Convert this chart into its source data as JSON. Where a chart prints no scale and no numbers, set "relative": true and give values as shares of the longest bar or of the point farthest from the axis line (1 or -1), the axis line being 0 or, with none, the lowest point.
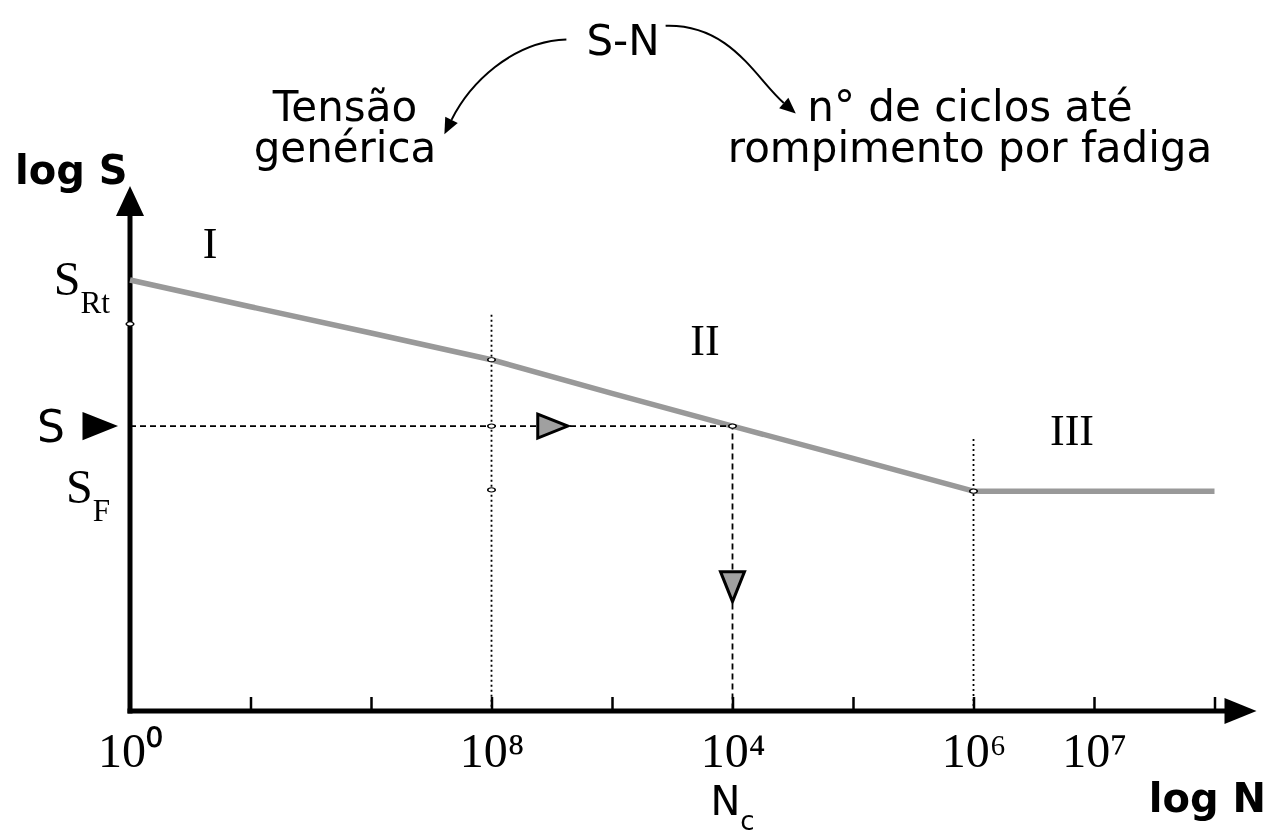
{
  "chart_data": {
    "type": "line",
    "title": "S-N",
    "xlabel": "log N",
    "ylabel": "log S",
    "relative": true,
    "categories": [
      "10⁰",
      null,
      null,
      "10⁸",
      null,
      "10⁴",
      null,
      "10⁶",
      "10⁷",
      null
    ],
    "series": [
      {
        "color": "#999999",
        "values": [
          1,
          0.938,
          0.877,
          0.815,
          0.737,
          0.661,
          0.586,
          0.51,
          0.51,
          0.51
        ]
      },
      {
        "type": "line",
        "line_style": "dashed",
        "color": "#000000",
        "x": [
          "10⁰",
          "10⁴",
          "10⁴"
        ],
        "values": [
          0.661,
          0.661,
          0
        ]
      },
      {
        "type": "line",
        "line_style": "dotted",
        "color": "#000000",
        "x": [
          "10⁶",
          "10⁶"
        ],
        "values": [
          0.631,
          0
        ]
      },
      {
        "type": "scatter",
        "marker": "circle",
        "color": "#000000",
        "x": [
          "10⁰",
          "10⁸",
          "10⁸",
          "10⁸",
          "10⁴",
          "10⁶"
        ],
        "values": [
          0.898,
          0.815,
          0.661,
          0.513,
          0.661,
          0.51
        ]
      }
    ],
    "ref_lines": [
      {
        "axis": "x",
        "value": "10⁸",
        "line_style": "dotted",
        "color": "#000000"
      }
    ],
    "annotations": [
      "Tensão genérica",
      "n° de ciclos até rompimento por fadiga",
      "I",
      "II",
      "III",
      "S$_{Rt}$",
      "S$_{F}$",
      {
        "text": "S",
        "x": "10⁰",
        "y": 0.661
      },
      {
        "text": "N$_{c}$",
        "x": "10⁴",
        "y": 0
      }
    ]
  }
}
